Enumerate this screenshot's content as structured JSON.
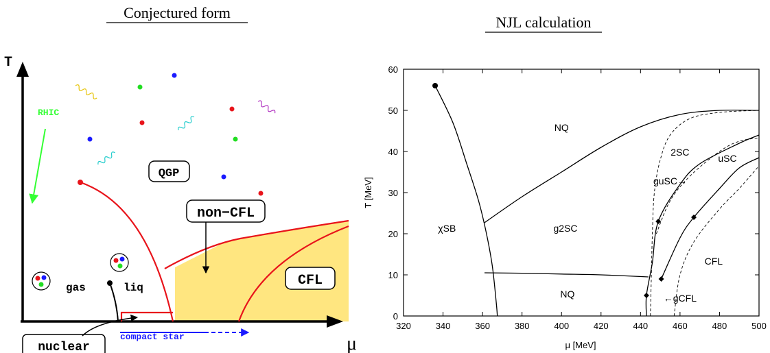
{
  "left": {
    "title": "Conjectured form",
    "y_axis_label": "T",
    "x_axis_label": "μ",
    "labels": {
      "rhic": "RHIC",
      "qgp": "QGP",
      "non_cfl": "non−CFL",
      "cfl": "CFL",
      "gas": "gas",
      "liq": "liq",
      "nuclear": "nuclear",
      "compact_star": "compact star"
    },
    "colors": {
      "boundary": "#e8141b",
      "cfl_fill": "#ffe680",
      "rhic": "#33ff33",
      "compact_star": "#1a1aff"
    }
  },
  "right": {
    "title": "NJL calculation",
    "chart_data": {
      "type": "line",
      "xlabel": "μ [MeV]",
      "ylabel": "T [MeV]",
      "xlim": [
        320,
        500
      ],
      "ylim": [
        0,
        60
      ],
      "x_ticks": [
        320,
        340,
        360,
        380,
        400,
        420,
        440,
        460,
        480,
        500
      ],
      "y_ticks": [
        0,
        10,
        20,
        30,
        40,
        50,
        60
      ],
      "region_labels": [
        {
          "text": "NQ",
          "mu": 400,
          "t": 45
        },
        {
          "text": "χSB",
          "mu": 342,
          "t": 20.5
        },
        {
          "text": "g2SC",
          "mu": 402,
          "t": 20.5
        },
        {
          "text": "NQ",
          "mu": 403,
          "t": 4.5
        },
        {
          "text": "2SC",
          "mu": 460,
          "t": 39
        },
        {
          "text": "uSC",
          "mu": 484,
          "t": 37.5
        },
        {
          "text": "guSC→",
          "mu": 455,
          "t": 32
        },
        {
          "text": "CFL",
          "mu": 477,
          "t": 12.5
        },
        {
          "text": "←gCFL",
          "mu": 460,
          "t": 3.5
        }
      ],
      "series": [
        {
          "style": "solid",
          "points": [
            [
              336,
              56
            ],
            [
              345,
              47
            ],
            [
              352,
              37
            ],
            [
              358,
              28
            ],
            [
              362,
              20
            ],
            [
              365,
              12
            ],
            [
              367,
              3
            ],
            [
              367.5,
              0
            ]
          ]
        },
        {
          "style": "solid",
          "points": [
            [
              361,
              22.7
            ],
            [
              380,
              29
            ],
            [
              400,
              35
            ],
            [
              420,
              41
            ],
            [
              440,
              46
            ],
            [
              460,
              49
            ],
            [
              480,
              50
            ],
            [
              500,
              50
            ]
          ]
        },
        {
          "style": "solid",
          "points": [
            [
              361,
              10.5
            ],
            [
              380,
              10.4
            ],
            [
              400,
              10.2
            ],
            [
              420,
              10
            ],
            [
              444,
              9.5
            ]
          ]
        },
        {
          "style": "solid",
          "points": [
            [
              443,
              0
            ],
            [
              443,
              5
            ],
            [
              446,
              13
            ],
            [
              449,
              23
            ],
            [
              460,
              32
            ],
            [
              470,
              37
            ],
            [
              490,
              42
            ],
            [
              500,
              44
            ]
          ]
        },
        {
          "style": "solid",
          "points": [
            [
              450.5,
              9
            ],
            [
              460,
              19
            ],
            [
              467,
              24
            ],
            [
              480,
              31
            ],
            [
              490,
              36
            ],
            [
              500,
              38.5
            ]
          ]
        },
        {
          "style": "dashed",
          "points": [
            [
              445,
              0
            ],
            [
              445.5,
              10
            ],
            [
              446,
              20
            ],
            [
              447,
              30
            ],
            [
              450,
              38
            ],
            [
              455,
              44
            ],
            [
              465,
              48
            ],
            [
              480,
              49.5
            ],
            [
              500,
              50
            ]
          ]
        },
        {
          "style": "dashed",
          "points": [
            [
              448,
              20
            ],
            [
              455,
              28
            ],
            [
              465,
              34
            ],
            [
              480,
              40
            ],
            [
              490,
              42.5
            ],
            [
              500,
              43.3
            ]
          ]
        },
        {
          "style": "dashed",
          "points": [
            [
              457,
              0
            ],
            [
              460,
              10
            ],
            [
              467,
              18
            ],
            [
              480,
              26
            ],
            [
              490,
              31
            ],
            [
              500,
              36.5
            ]
          ]
        }
      ],
      "markers": [
        {
          "shape": "circle",
          "mu": 336,
          "t": 56
        },
        {
          "shape": "diamond",
          "mu": 443,
          "t": 5
        },
        {
          "shape": "diamond",
          "mu": 449,
          "t": 23
        },
        {
          "shape": "diamond",
          "mu": 450.5,
          "t": 9
        },
        {
          "shape": "diamond",
          "mu": 467,
          "t": 24
        }
      ]
    }
  }
}
